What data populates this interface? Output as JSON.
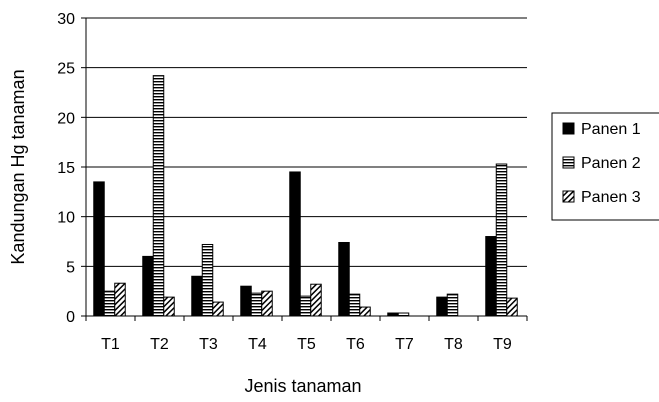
{
  "chart_data": {
    "type": "bar",
    "title": "",
    "xlabel": "Jenis tanaman",
    "ylabel": "Kandungan Hg tanaman",
    "ylim": [
      0,
      30
    ],
    "yticks": [
      "0",
      "5",
      "10",
      "15",
      "20",
      "25",
      "30"
    ],
    "categories": [
      "T1",
      "T2",
      "T3",
      "T4",
      "T5",
      "T6",
      "T7",
      "T8",
      "T9"
    ],
    "grid": "horizontal",
    "legend_position": "right",
    "series": [
      {
        "name": "Panen 1",
        "pattern": "solid",
        "values": [
          13.5,
          6.0,
          4.0,
          3.0,
          14.5,
          7.4,
          0.3,
          1.9,
          8.0
        ]
      },
      {
        "name": "Panen 2",
        "pattern": "horizontal-lines",
        "values": [
          2.5,
          24.2,
          7.2,
          2.3,
          2.0,
          2.2,
          0.3,
          2.2,
          15.3
        ]
      },
      {
        "name": "Panen 3",
        "pattern": "diagonal-lines",
        "values": [
          3.3,
          1.9,
          1.4,
          2.5,
          3.2,
          0.9,
          0.0,
          0.0,
          1.8
        ]
      }
    ]
  }
}
